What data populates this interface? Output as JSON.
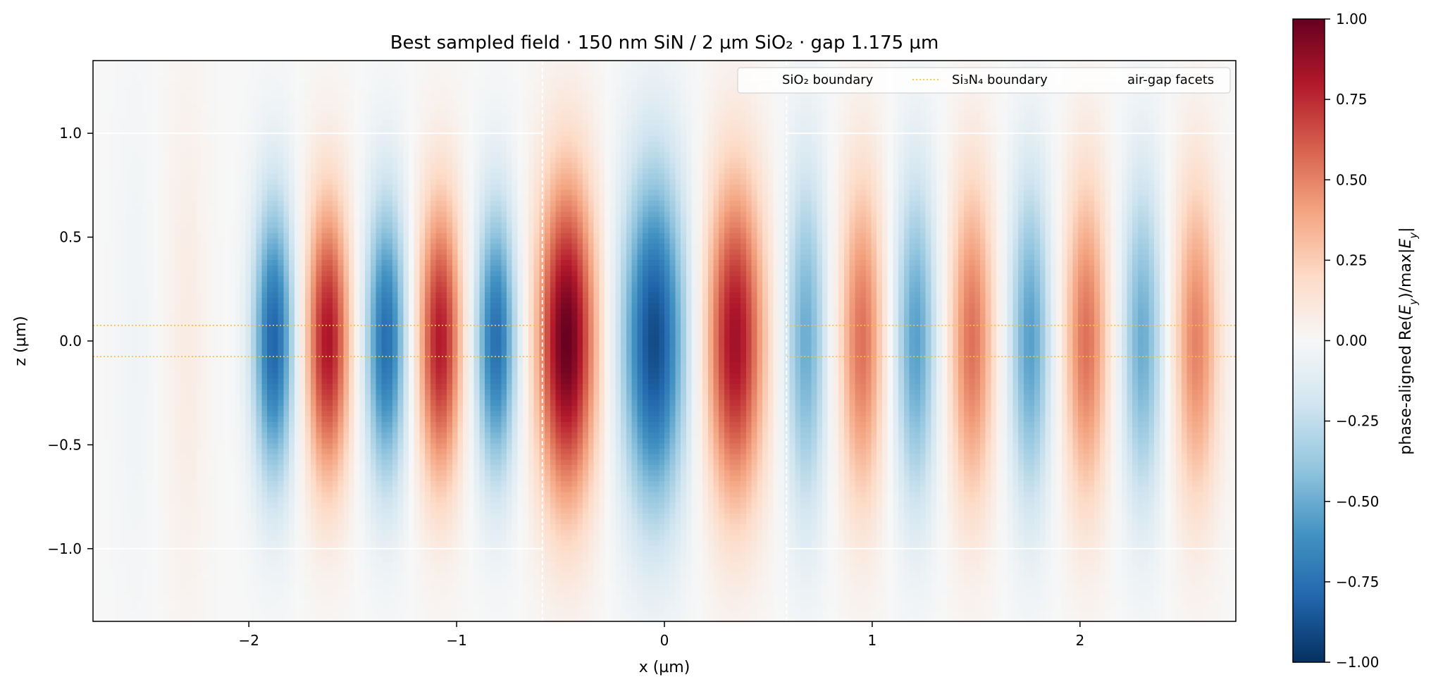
{
  "chart_data": {
    "type": "heatmap",
    "title": "Best sampled field · 150 nm SiN / 2 µm SiO₂ · gap 1.175 µm",
    "xlabel": "x (µm)",
    "ylabel": "z (µm)",
    "xlim": [
      -2.75,
      2.75
    ],
    "ylim": [
      -1.35,
      1.35
    ],
    "x_ticks": [
      -2,
      -1,
      0,
      1,
      2
    ],
    "x_tick_labels": [
      "−2",
      "−1",
      "0",
      "1",
      "2"
    ],
    "y_ticks": [
      -1.0,
      -0.5,
      0.0,
      0.5,
      1.0
    ],
    "y_tick_labels": [
      "−1.0",
      "−0.5",
      "0.0",
      "0.5",
      "1.0"
    ],
    "colorbar": {
      "label": "phase-aligned Re(E_y)/max|E_y|",
      "label_parts": [
        "phase-aligned Re(",
        "E",
        "y",
        ")/max|",
        "E",
        "y",
        "|"
      ],
      "min": -1.0,
      "max": 1.0,
      "colormap": "RdBu_r",
      "ticks": [
        1.0,
        0.75,
        0.5,
        0.25,
        0.0,
        -0.25,
        -0.5,
        -0.75,
        -1.0
      ],
      "tick_labels": [
        "1.00",
        "0.75",
        "0.50",
        "0.25",
        "0.00",
        "−0.25",
        "−0.50",
        "−0.75",
        "−1.00"
      ]
    },
    "legend": {
      "placement": "upper right",
      "entries": [
        {
          "label": "SiO₂ boundary",
          "color": "#ffffff",
          "style": "solid"
        },
        {
          "label": "Si₃N₄ boundary",
          "color": "#f5c242",
          "style": "dotted"
        },
        {
          "label": "air-gap facets",
          "color": "#ffffff",
          "style": "dashed"
        }
      ]
    },
    "sio2_boundary_z": [
      -1.0,
      1.0
    ],
    "si3n4_boundary_z": [
      -0.075,
      0.075
    ],
    "gap_facets_x": [
      -0.5875,
      0.5875
    ],
    "field_lobes": [
      {
        "x": -2.55,
        "a": -0.04,
        "sx": 0.07,
        "sz": 0.9
      },
      {
        "x": -2.3,
        "a": 0.08,
        "sx": 0.07,
        "sz": 0.9
      },
      {
        "x": -1.88,
        "a": -0.8,
        "sx": 0.07,
        "sz": 0.48
      },
      {
        "x": -1.62,
        "a": 0.82,
        "sx": 0.075,
        "sz": 0.48
      },
      {
        "x": -1.34,
        "a": -0.76,
        "sx": 0.07,
        "sz": 0.48
      },
      {
        "x": -1.08,
        "a": 0.8,
        "sx": 0.075,
        "sz": 0.48
      },
      {
        "x": -0.81,
        "a": -0.76,
        "sx": 0.07,
        "sz": 0.46
      },
      {
        "x": -0.47,
        "a": 1.0,
        "sx": 0.1,
        "sz": 0.55
      },
      {
        "x": -0.05,
        "a": -0.9,
        "sx": 0.11,
        "sz": 0.58
      },
      {
        "x": 0.34,
        "a": 0.85,
        "sx": 0.1,
        "sz": 0.55
      },
      {
        "x": 0.68,
        "a": -0.5,
        "sx": 0.07,
        "sz": 0.58
      },
      {
        "x": 0.95,
        "a": 0.55,
        "sx": 0.075,
        "sz": 0.55
      },
      {
        "x": 1.21,
        "a": -0.55,
        "sx": 0.07,
        "sz": 0.55
      },
      {
        "x": 1.48,
        "a": 0.55,
        "sx": 0.075,
        "sz": 0.55
      },
      {
        "x": 1.76,
        "a": -0.55,
        "sx": 0.07,
        "sz": 0.55
      },
      {
        "x": 2.03,
        "a": 0.55,
        "sx": 0.075,
        "sz": 0.55
      },
      {
        "x": 2.3,
        "a": -0.5,
        "sx": 0.07,
        "sz": 0.55
      },
      {
        "x": 2.56,
        "a": 0.5,
        "sx": 0.075,
        "sz": 0.55
      }
    ]
  }
}
